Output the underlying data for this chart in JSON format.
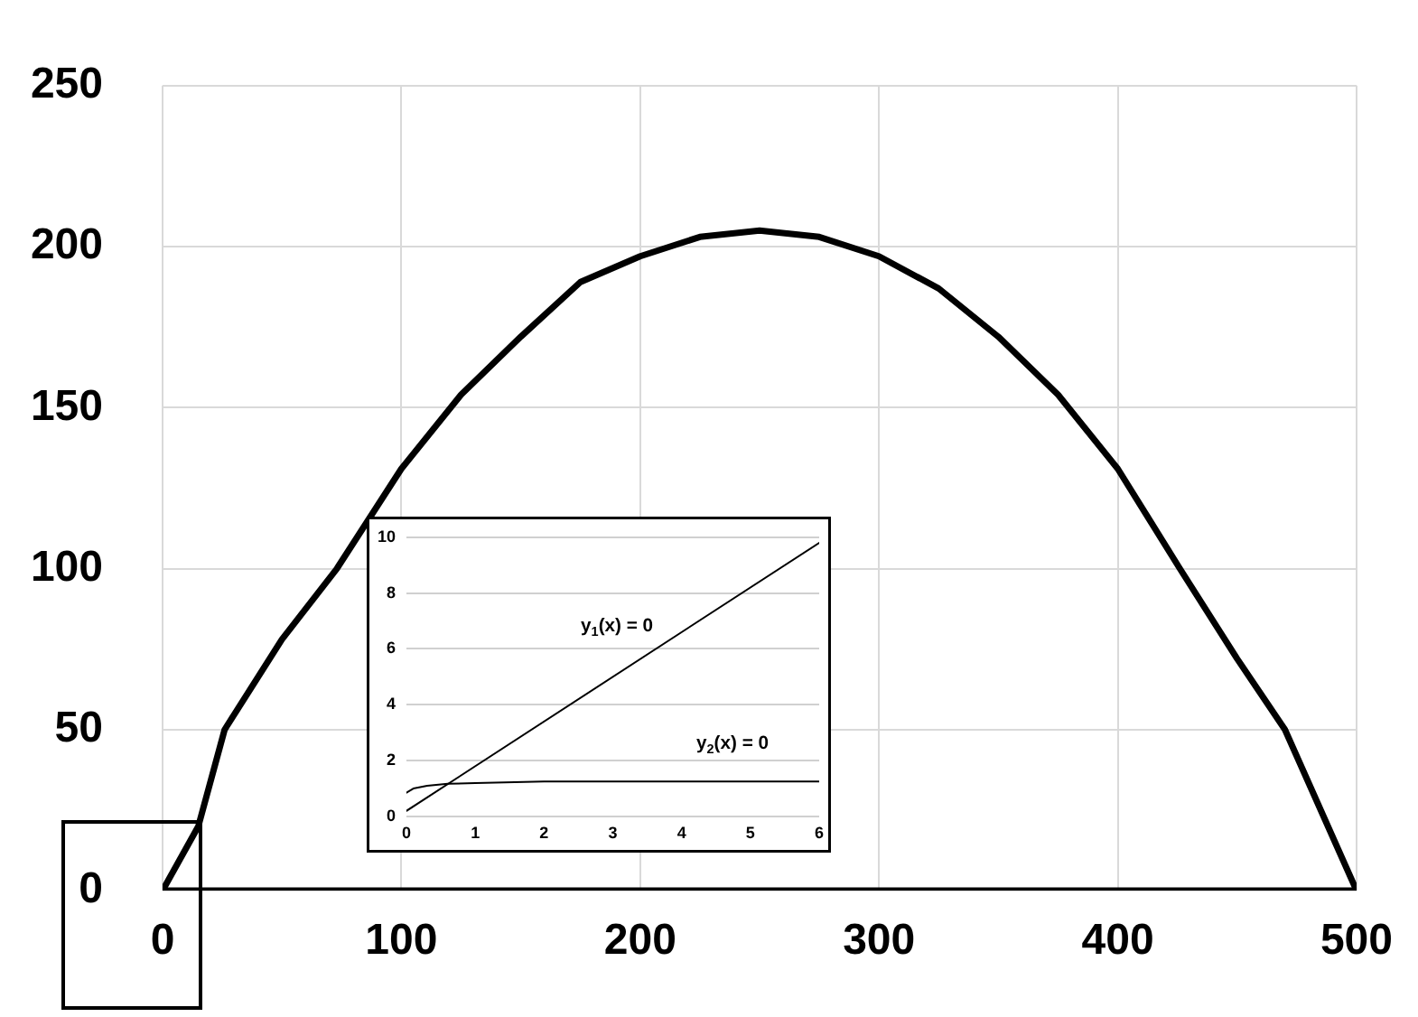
{
  "chart_data": [
    {
      "type": "line",
      "xlim": [
        0,
        500
      ],
      "ylim": [
        0,
        250
      ],
      "xticks": [
        0,
        100,
        200,
        300,
        400,
        500
      ],
      "yticks": [
        0,
        50,
        100,
        150,
        200,
        250
      ],
      "grid": true,
      "marker": "none",
      "series": [
        {
          "color": "#000000",
          "x": [
            0,
            15,
            26,
            50,
            73,
            100,
            125,
            150,
            175,
            200,
            225,
            250,
            275,
            300,
            325,
            350,
            375,
            400,
            426,
            450,
            470,
            500
          ],
          "values": [
            0,
            20,
            50,
            78,
            100,
            131,
            154,
            172,
            189,
            197,
            203,
            205,
            203,
            197,
            187,
            172,
            154,
            131,
            100,
            72,
            50,
            0
          ]
        },
        {
          "color": "#000000",
          "x": [
            0,
            500
          ],
          "values": [
            0,
            0
          ]
        }
      ]
    },
    {
      "type": "line",
      "xlim": [
        0,
        6
      ],
      "ylim": [
        0,
        10
      ],
      "xticks": [
        0,
        1,
        2,
        3,
        4,
        5,
        6
      ],
      "yticks": [
        0,
        2,
        4,
        6,
        8,
        10
      ],
      "grid": "y",
      "marker": "none",
      "series": [
        {
          "name": "y$_{1}$(x) = 0",
          "color": "#000000",
          "x": [
            0,
            6
          ],
          "values": [
            0.2,
            9.8
          ]
        },
        {
          "name": "y$_{2}$(x) = 0",
          "color": "#000000",
          "x": [
            0,
            0.1,
            0.3,
            0.6,
            1,
            2,
            6
          ],
          "values": [
            0.85,
            1.0,
            1.1,
            1.17,
            1.2,
            1.25,
            1.25
          ]
        }
      ]
    }
  ]
}
